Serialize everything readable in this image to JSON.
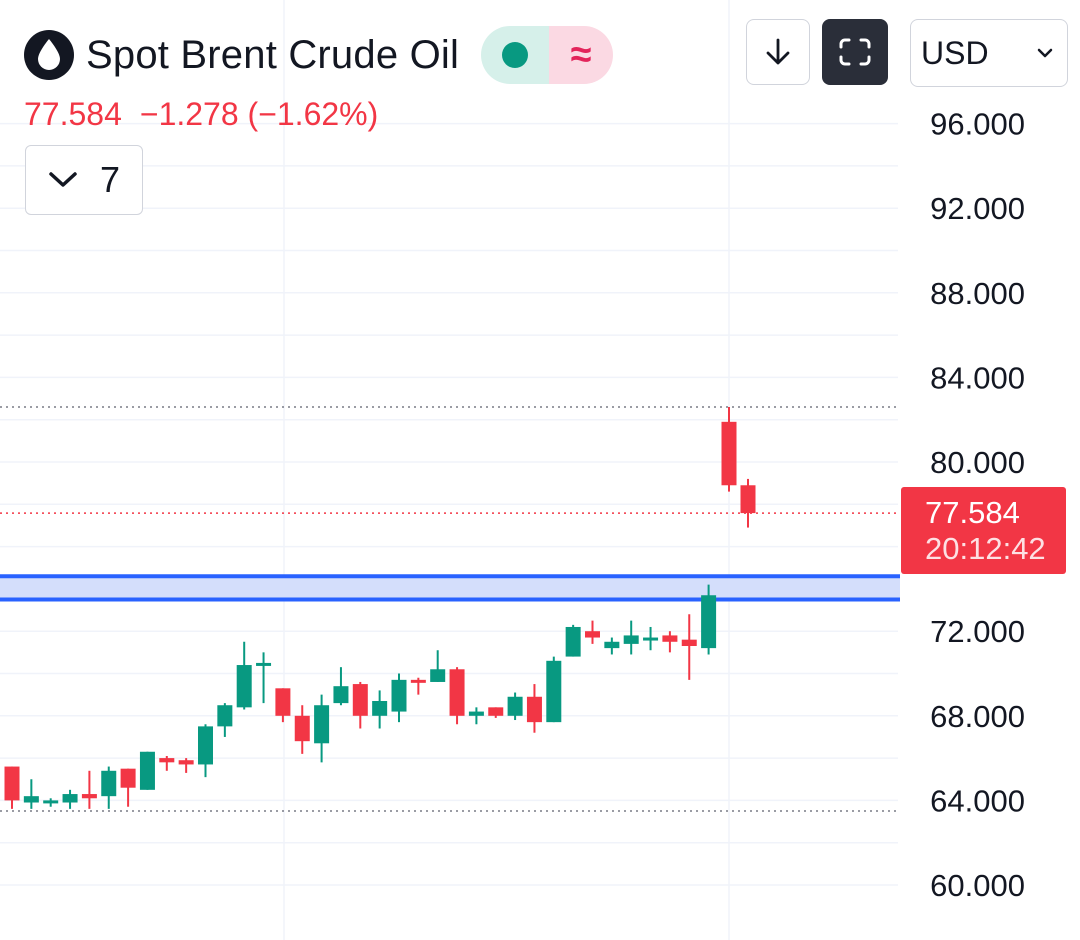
{
  "header": {
    "symbol_title": "Spot Brent Crude Oil",
    "last_price": "77.584",
    "change": "−1.278",
    "change_percent": "(−1.62%)",
    "interval_value": "7",
    "currency": "USD"
  },
  "colors": {
    "up": "#089981",
    "down": "#f23645",
    "zone": "#2962ff",
    "grid": "#f0f3fa",
    "axis_text": "#131722"
  },
  "icons": {
    "symbol": "oil-drop-icon",
    "download": "arrow-down-icon",
    "fullscreen": "fullscreen-icon",
    "currency_dropdown": "chevron-down-icon",
    "interval_dropdown": "chevron-down-icon",
    "status_market": "market-open-dot-icon",
    "status_delayed": "approximate-icon"
  },
  "last_price_tag": {
    "price": "77.584",
    "countdown": "20:12:42"
  },
  "chart_data": {
    "type": "candlestick",
    "ylim": [
      60,
      96
    ],
    "yticks": [
      "96.000",
      "92.000",
      "88.000",
      "84.000",
      "80.000",
      "72.000",
      "68.000",
      "64.000",
      "60.000"
    ],
    "ytick_values": [
      96,
      92,
      88,
      84,
      80,
      72,
      68,
      64,
      60
    ],
    "last_price": 77.584,
    "dotted_levels": [
      82.6,
      77.584,
      63.5
    ],
    "zone": {
      "from": 73.5,
      "to": 74.6
    },
    "candles": [
      {
        "o": 65.6,
        "h": 65.6,
        "l": 63.6,
        "c": 64.0
      },
      {
        "o": 63.9,
        "h": 65.0,
        "l": 63.6,
        "c": 64.2
      },
      {
        "o": 63.9,
        "h": 64.1,
        "l": 63.7,
        "c": 64.0
      },
      {
        "o": 63.9,
        "h": 64.5,
        "l": 63.6,
        "c": 64.3
      },
      {
        "o": 64.3,
        "h": 65.4,
        "l": 63.6,
        "c": 64.1
      },
      {
        "o": 64.2,
        "h": 65.6,
        "l": 63.6,
        "c": 65.4
      },
      {
        "o": 65.5,
        "h": 65.5,
        "l": 63.7,
        "c": 64.6
      },
      {
        "o": 64.5,
        "h": 66.3,
        "l": 64.5,
        "c": 66.3
      },
      {
        "o": 66.0,
        "h": 66.1,
        "l": 65.4,
        "c": 65.8
      },
      {
        "o": 65.9,
        "h": 66.0,
        "l": 65.3,
        "c": 65.7
      },
      {
        "o": 65.7,
        "h": 67.6,
        "l": 65.1,
        "c": 67.5
      },
      {
        "o": 67.5,
        "h": 68.6,
        "l": 67.0,
        "c": 68.5
      },
      {
        "o": 68.4,
        "h": 71.5,
        "l": 68.3,
        "c": 70.4
      },
      {
        "o": 70.4,
        "h": 71.0,
        "l": 68.6,
        "c": 70.5
      },
      {
        "o": 69.3,
        "h": 69.3,
        "l": 67.7,
        "c": 68.0
      },
      {
        "o": 68.0,
        "h": 68.5,
        "l": 66.2,
        "c": 66.8
      },
      {
        "o": 66.7,
        "h": 69.0,
        "l": 65.8,
        "c": 68.5
      },
      {
        "o": 68.6,
        "h": 70.3,
        "l": 68.5,
        "c": 69.4
      },
      {
        "o": 69.5,
        "h": 69.6,
        "l": 67.4,
        "c": 68.0
      },
      {
        "o": 68.0,
        "h": 69.2,
        "l": 67.4,
        "c": 68.7
      },
      {
        "o": 68.2,
        "h": 70.0,
        "l": 67.7,
        "c": 69.7
      },
      {
        "o": 69.7,
        "h": 69.8,
        "l": 69.0,
        "c": 69.6
      },
      {
        "o": 69.6,
        "h": 71.1,
        "l": 69.6,
        "c": 70.2
      },
      {
        "o": 70.2,
        "h": 70.3,
        "l": 67.6,
        "c": 68.0
      },
      {
        "o": 68.0,
        "h": 68.4,
        "l": 67.6,
        "c": 68.2
      },
      {
        "o": 68.4,
        "h": 68.4,
        "l": 67.9,
        "c": 68.0
      },
      {
        "o": 68.0,
        "h": 69.1,
        "l": 67.8,
        "c": 68.9
      },
      {
        "o": 68.9,
        "h": 69.5,
        "l": 67.2,
        "c": 67.7
      },
      {
        "o": 67.7,
        "h": 70.8,
        "l": 67.7,
        "c": 70.6
      },
      {
        "o": 70.8,
        "h": 72.3,
        "l": 70.8,
        "c": 72.2
      },
      {
        "o": 72.0,
        "h": 72.5,
        "l": 71.4,
        "c": 71.7
      },
      {
        "o": 71.2,
        "h": 71.7,
        "l": 70.9,
        "c": 71.5
      },
      {
        "o": 71.4,
        "h": 72.5,
        "l": 70.9,
        "c": 71.8
      },
      {
        "o": 71.7,
        "h": 72.2,
        "l": 71.1,
        "c": 71.7
      },
      {
        "o": 71.8,
        "h": 72.0,
        "l": 71.0,
        "c": 71.5
      },
      {
        "o": 71.6,
        "h": 72.8,
        "l": 69.7,
        "c": 71.3
      },
      {
        "o": 71.2,
        "h": 74.2,
        "l": 70.9,
        "c": 73.7
      },
      {
        "o": 81.9,
        "h": 82.6,
        "l": 78.6,
        "c": 78.9
      },
      {
        "o": 78.9,
        "h": 79.2,
        "l": 76.9,
        "c": 77.584
      }
    ],
    "candle_slots": [
      0,
      1,
      2,
      3,
      4,
      5,
      6,
      7,
      8,
      9,
      10,
      11,
      12,
      13,
      14,
      15,
      16,
      17,
      18,
      19,
      20,
      21,
      22,
      23,
      24,
      25,
      26,
      27,
      28,
      29,
      30,
      31,
      32,
      33,
      34,
      35,
      36,
      37,
      38
    ]
  }
}
